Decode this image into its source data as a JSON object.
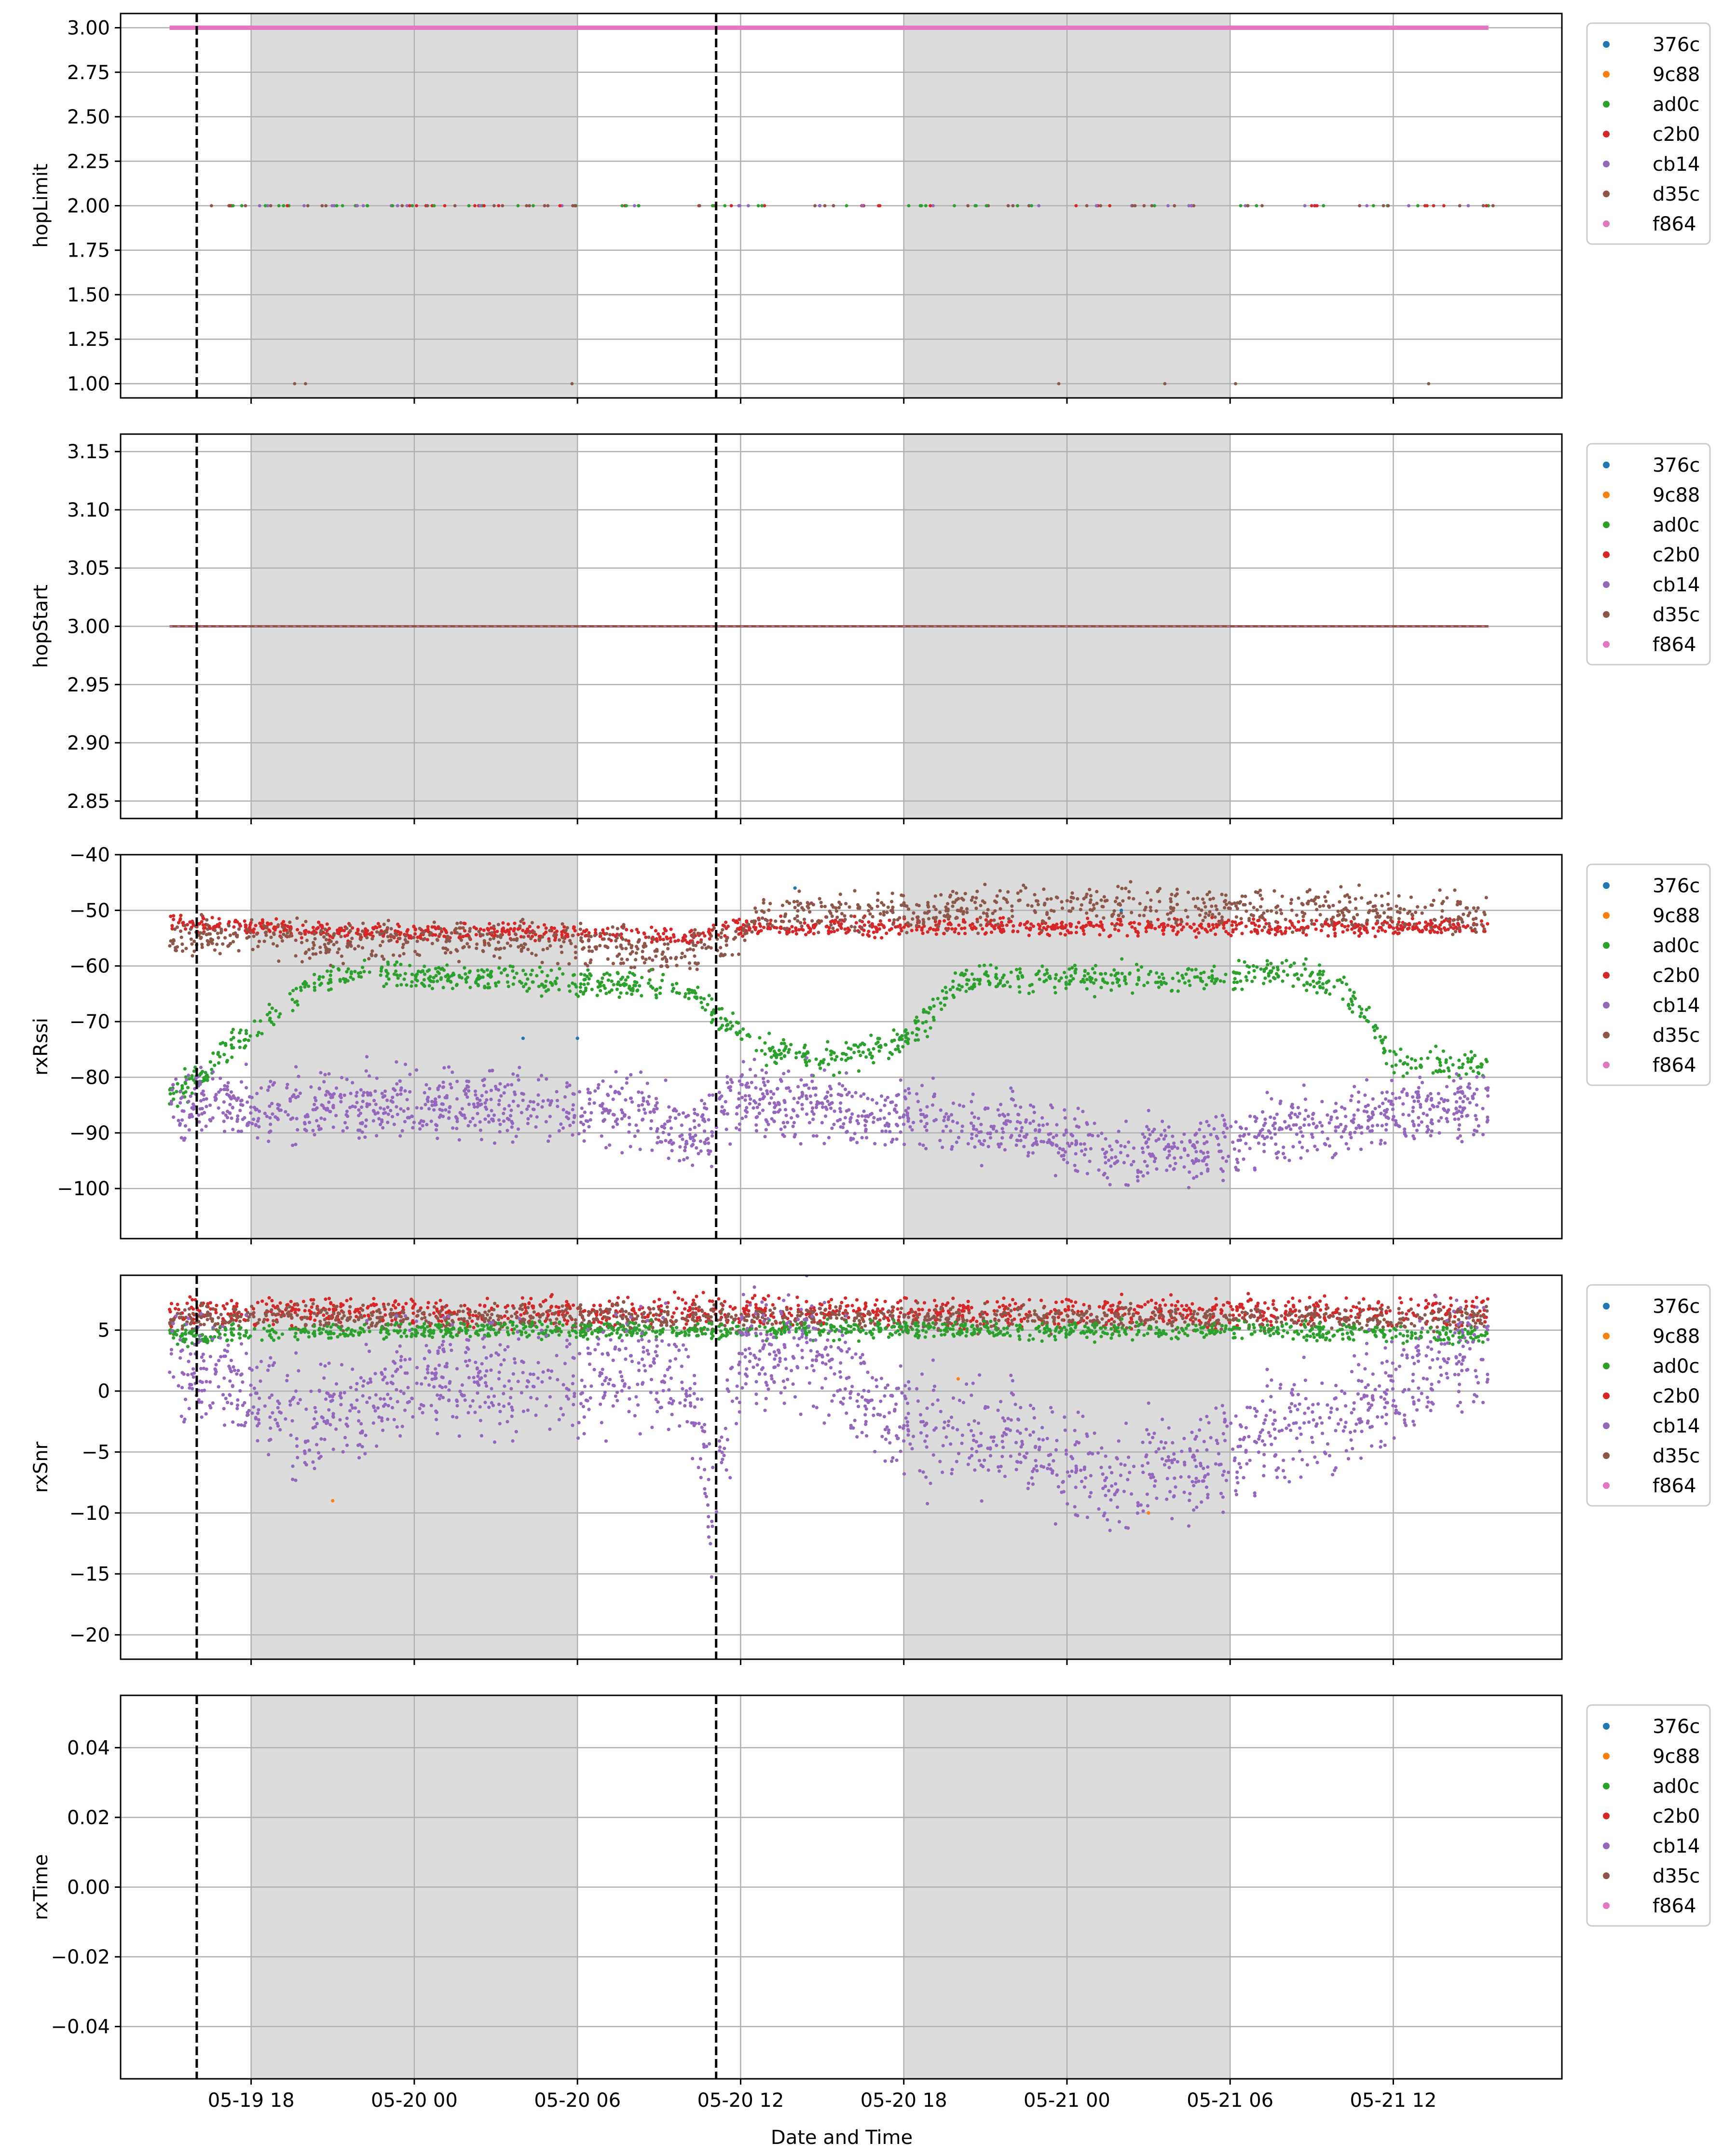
{
  "figure": {
    "xlabel": "Date and Time",
    "x_ticks": [
      "05-19 18",
      "05-20 00",
      "05-20 06",
      "05-20 12",
      "05-20 18",
      "05-21 00",
      "05-21 06",
      "05-21 12"
    ],
    "x_tick_hours": [
      18,
      24,
      30,
      36,
      42,
      48,
      54,
      60
    ],
    "x_range_hours": [
      13.2,
      66.2
    ],
    "night_bands_hours": [
      [
        18,
        30
      ],
      [
        42,
        54
      ]
    ],
    "dashed_lines_hours": [
      16,
      35.1
    ],
    "background_color": "#ffffff",
    "shade_color": "#dcdcdc",
    "grid_color": "#b0b0b0"
  },
  "legend": {
    "entries": [
      {
        "name": "376c",
        "color": "#1f77b4"
      },
      {
        "name": "9c88",
        "color": "#ff7f0e"
      },
      {
        "name": "ad0c",
        "color": "#2ca02c"
      },
      {
        "name": "c2b0",
        "color": "#d62728"
      },
      {
        "name": "cb14",
        "color": "#9467bd"
      },
      {
        "name": "d35c",
        "color": "#8c564b"
      },
      {
        "name": "f864",
        "color": "#e377c2"
      }
    ]
  },
  "chart_data": [
    {
      "type": "scatter",
      "ylabel": "hopLimit",
      "ylim": [
        0.92,
        3.08
      ],
      "y_ticks": [
        "1.00",
        "1.25",
        "1.50",
        "1.75",
        "2.00",
        "2.25",
        "2.50",
        "2.75",
        "3.00"
      ],
      "y_tick_values": [
        1.0,
        1.25,
        1.5,
        1.75,
        2.0,
        2.25,
        2.5,
        2.75,
        3.0
      ],
      "grid": true,
      "legend": "outside right",
      "x_range_hours": [
        15.0,
        63.5
      ],
      "series": [
        {
          "name": "f864",
          "points": [
            [
              15.0,
              3.0
            ],
            [
              63.5,
              3.0
            ]
          ],
          "note": "solid band at 3.00"
        },
        {
          "name": "cb14",
          "values_at_2": [
            17.0,
            18.2,
            19.5,
            20.7,
            22.0,
            23.5,
            24.5,
            25.8,
            27.0,
            28.5,
            29.7,
            32.0,
            35.0,
            36.5,
            39.3,
            40.8,
            42.7,
            44.5,
            46.3,
            49.0,
            50.8,
            52.2,
            55.0,
            57.0,
            59.4,
            61.2,
            63.0
          ]
        },
        {
          "name": "d35c",
          "values_at_1": [
            19.6,
            20.0,
            29.8,
            47.7,
            51.6,
            54.2,
            61.3
          ]
        }
      ]
    },
    {
      "type": "scatter",
      "ylabel": "hopStart",
      "ylim": [
        2.835,
        3.165
      ],
      "y_ticks": [
        "2.85",
        "2.90",
        "2.95",
        "3.00",
        "3.05",
        "3.10",
        "3.15"
      ],
      "y_tick_values": [
        2.85,
        2.9,
        2.95,
        3.0,
        3.05,
        3.1,
        3.15
      ],
      "grid": true,
      "legend": "outside right",
      "series": [
        {
          "name": "d35c",
          "points": [
            [
              15.0,
              3.0
            ],
            [
              63.5,
              3.0
            ]
          ],
          "note": "all nodes at 3.00"
        }
      ]
    },
    {
      "type": "scatter",
      "ylabel": "rxRssi",
      "ylim": [
        -109,
        -40
      ],
      "y_ticks": [
        "−100",
        "−90",
        "−80",
        "−70",
        "−60",
        "−50",
        "−40"
      ],
      "y_tick_values": [
        -100,
        -90,
        -80,
        -70,
        -60,
        -50,
        -40
      ],
      "grid": true,
      "legend": "outside right",
      "series": [
        {
          "name": "c2b0",
          "points": [
            [
              15,
              -52
            ],
            [
              18,
              -53
            ],
            [
              22,
              -54
            ],
            [
              26,
              -54
            ],
            [
              30,
              -54
            ],
            [
              34,
              -55
            ],
            [
              36,
              -53
            ],
            [
              42,
              -53
            ],
            [
              48,
              -53
            ],
            [
              54,
              -53
            ],
            [
              60,
              -53
            ],
            [
              63.5,
              -53
            ]
          ]
        },
        {
          "name": "d35c",
          "points": [
            [
              15,
              -55
            ],
            [
              18,
              -55
            ],
            [
              22,
              -56
            ],
            [
              26,
              -55
            ],
            [
              30,
              -56
            ],
            [
              33,
              -58
            ],
            [
              35,
              -57
            ],
            [
              37,
              -51
            ],
            [
              42,
              -50
            ],
            [
              48,
              -49
            ],
            [
              54,
              -49
            ],
            [
              60,
              -50
            ],
            [
              63.5,
              -51
            ]
          ]
        },
        {
          "name": "ad0c",
          "points": [
            [
              15,
              -84
            ],
            [
              16.5,
              -78
            ],
            [
              18,
              -72
            ],
            [
              20,
              -64
            ],
            [
              22,
              -61
            ],
            [
              24,
              -62
            ],
            [
              26,
              -62
            ],
            [
              30,
              -63
            ],
            [
              34,
              -64
            ],
            [
              35.5,
              -70
            ],
            [
              37,
              -75
            ],
            [
              39,
              -77
            ],
            [
              42,
              -74
            ],
            [
              44,
              -63
            ],
            [
              46,
              -62
            ],
            [
              50,
              -62
            ],
            [
              54,
              -62
            ],
            [
              56,
              -61
            ],
            [
              58,
              -63
            ],
            [
              60,
              -77
            ],
            [
              63.5,
              -78
            ]
          ]
        },
        {
          "name": "cb14",
          "points": [
            [
              15,
              -85
            ],
            [
              16.5,
              -84
            ],
            [
              18,
              -86
            ],
            [
              22,
              -85
            ],
            [
              26,
              -85
            ],
            [
              30,
              -86
            ],
            [
              32,
              -85
            ],
            [
              34.5,
              -90
            ],
            [
              36,
              -83
            ],
            [
              38,
              -85
            ],
            [
              42,
              -87
            ],
            [
              46,
              -89
            ],
            [
              48,
              -91
            ],
            [
              50,
              -95
            ],
            [
              52,
              -93
            ],
            [
              54,
              -92
            ],
            [
              56,
              -89
            ],
            [
              58,
              -88
            ],
            [
              60,
              -86
            ],
            [
              63.5,
              -85
            ]
          ]
        },
        {
          "name": "376c",
          "points": [
            [
              28,
              -73
            ],
            [
              30,
              -73
            ],
            [
              38,
              -46
            ],
            [
              50,
              -50
            ]
          ]
        }
      ]
    },
    {
      "type": "scatter",
      "ylabel": "rxSnr",
      "ylim": [
        -22,
        9.5
      ],
      "y_ticks": [
        "−20",
        "−15",
        "−10",
        "−5",
        "0",
        "5"
      ],
      "y_tick_values": [
        -20,
        -15,
        -10,
        -5,
        0,
        5
      ],
      "grid": true,
      "legend": "outside right",
      "series": [
        {
          "name": "c2b0",
          "points": [
            [
              15,
              6.5
            ],
            [
              25,
              6.5
            ],
            [
              35,
              6.5
            ],
            [
              45,
              6.5
            ],
            [
              55,
              6.5
            ],
            [
              63.5,
              6.5
            ]
          ]
        },
        {
          "name": "d35c",
          "points": [
            [
              15,
              6
            ],
            [
              25,
              6
            ],
            [
              35,
              6
            ],
            [
              45,
              6
            ],
            [
              55,
              6
            ],
            [
              63.5,
              6
            ]
          ]
        },
        {
          "name": "ad0c",
          "points": [
            [
              15,
              4.5
            ],
            [
              25,
              5
            ],
            [
              35,
              5
            ],
            [
              45,
              5
            ],
            [
              55,
              5
            ],
            [
              63.5,
              4.5
            ]
          ]
        },
        {
          "name": "cb14",
          "points": [
            [
              15,
              3
            ],
            [
              18,
              0
            ],
            [
              20,
              -3
            ],
            [
              22,
              -1
            ],
            [
              24,
              1
            ],
            [
              26,
              1
            ],
            [
              28,
              0.5
            ],
            [
              30,
              0.5
            ],
            [
              32,
              2
            ],
            [
              34,
              2
            ],
            [
              35,
              -10
            ],
            [
              36,
              3.5
            ],
            [
              38,
              3.5
            ],
            [
              40,
              1
            ],
            [
              42,
              -3
            ],
            [
              44,
              -3
            ],
            [
              46,
              -4
            ],
            [
              48,
              -6
            ],
            [
              50,
              -8
            ],
            [
              52,
              -6
            ],
            [
              54,
              -5
            ],
            [
              56,
              -3
            ],
            [
              58,
              -2
            ],
            [
              60,
              0
            ],
            [
              62,
              3
            ],
            [
              63.5,
              3
            ]
          ]
        },
        {
          "name": "9c88",
          "points": [
            [
              21,
              -9
            ],
            [
              44,
              1
            ],
            [
              51,
              -10
            ]
          ]
        }
      ]
    },
    {
      "type": "scatter",
      "ylabel": "rxTime",
      "ylim": [
        -0.055,
        0.055
      ],
      "y_ticks": [
        "−0.04",
        "−0.02",
        "0.00",
        "0.02",
        "0.04"
      ],
      "y_tick_values": [
        -0.04,
        -0.02,
        0.0,
        0.02,
        0.04
      ],
      "grid": true,
      "legend": "outside right",
      "series": []
    }
  ]
}
